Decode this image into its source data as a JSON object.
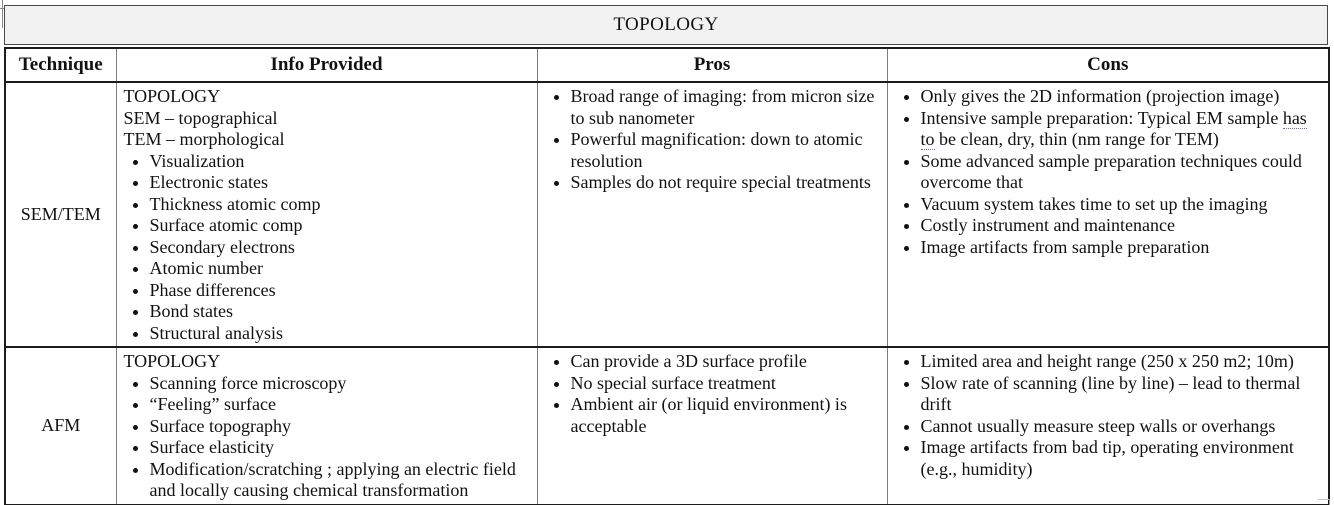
{
  "page": {
    "title": "TOPOLOGY"
  },
  "colors": {
    "title_row_bg": "#f2f2f2",
    "border_dark": "#1c1c1c",
    "border_gray": "#7d7d7d",
    "squiggle_underline": "#5c6bc0"
  },
  "table": {
    "headers": [
      "Technique",
      "Info Provided",
      "Pros",
      "Cons"
    ],
    "rows": [
      {
        "technique": "SEM/TEM",
        "info_intro": [
          "TOPOLOGY",
          "SEM – topographical",
          "TEM – morphological"
        ],
        "info_bullets": [
          "Visualization",
          "Electronic states",
          "Thickness atomic comp",
          "Surface atomic comp",
          "Secondary electrons",
          "Atomic number",
          "Phase differences",
          "Bond states",
          "Structural analysis"
        ],
        "pros": [
          "Broad range of imaging: from micron size to sub nanometer",
          "Powerful magnification: down to atomic resolution",
          "Samples do not require special treatments"
        ],
        "cons": [
          "Only gives the 2D information (projection image)",
          [
            {
              "t": "Intensive sample preparation: Typical EM sample "
            },
            {
              "t": "has to",
              "u": true
            },
            {
              "t": " be clean, dry, thin (nm range for TEM)"
            }
          ],
          "Some advanced sample preparation techniques could overcome that",
          "Vacuum system takes time to set up the imaging",
          "Costly instrument and maintenance",
          "Image artifacts from sample preparation"
        ]
      },
      {
        "technique": "AFM",
        "info_intro": [
          "TOPOLOGY"
        ],
        "info_bullets": [
          "Scanning force microscopy",
          "“Feeling” surface",
          "Surface topography",
          "Surface elasticity",
          "Modification/scratching ; applying an electric field and locally causing chemical transformation"
        ],
        "pros": [
          "Can provide a 3D surface profile",
          "No special surface treatment",
          "Ambient air (or liquid environment) is acceptable"
        ],
        "cons": [
          "Limited area and height range (250 x 250 m2; 10m)",
          "Slow rate of scanning (line by line) – lead to thermal drift",
          "Cannot usually measure steep walls or overhangs",
          "Image artifacts from bad tip, operating environment (e.g., humidity)"
        ]
      }
    ]
  }
}
